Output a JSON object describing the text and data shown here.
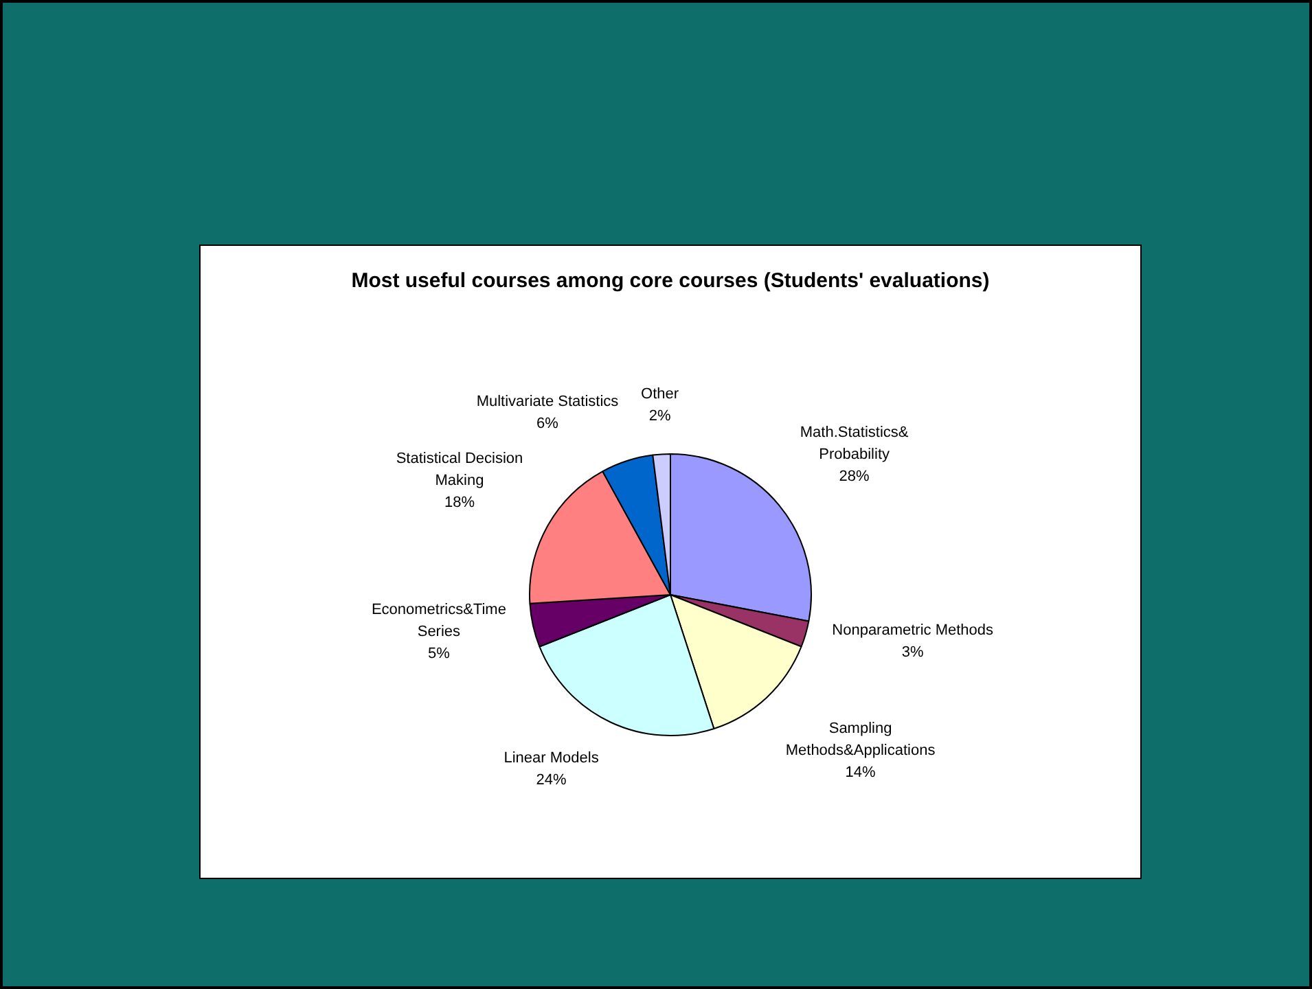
{
  "chart_data": {
    "type": "pie",
    "title": "Most useful courses among core courses (Students' evaluations)",
    "categories": [
      "Math.Statistics& Probability",
      "Nonparametric Methods",
      "Sampling Methods&Applications",
      "Linear Models",
      "Econometrics&Time Series",
      "Statistical Decision Making",
      "Multivariate Statistics",
      "Other"
    ],
    "values": [
      28,
      3,
      14,
      24,
      5,
      18,
      6,
      2
    ],
    "value_labels": [
      "28%",
      "3%",
      "14%",
      "24%",
      "5%",
      "18%",
      "6%",
      "2%"
    ],
    "colors": [
      "#9999ff",
      "#993366",
      "#ffffcc",
      "#ccffff",
      "#660066",
      "#ff8080",
      "#0066cc",
      "#ccccff"
    ],
    "legend": false
  }
}
